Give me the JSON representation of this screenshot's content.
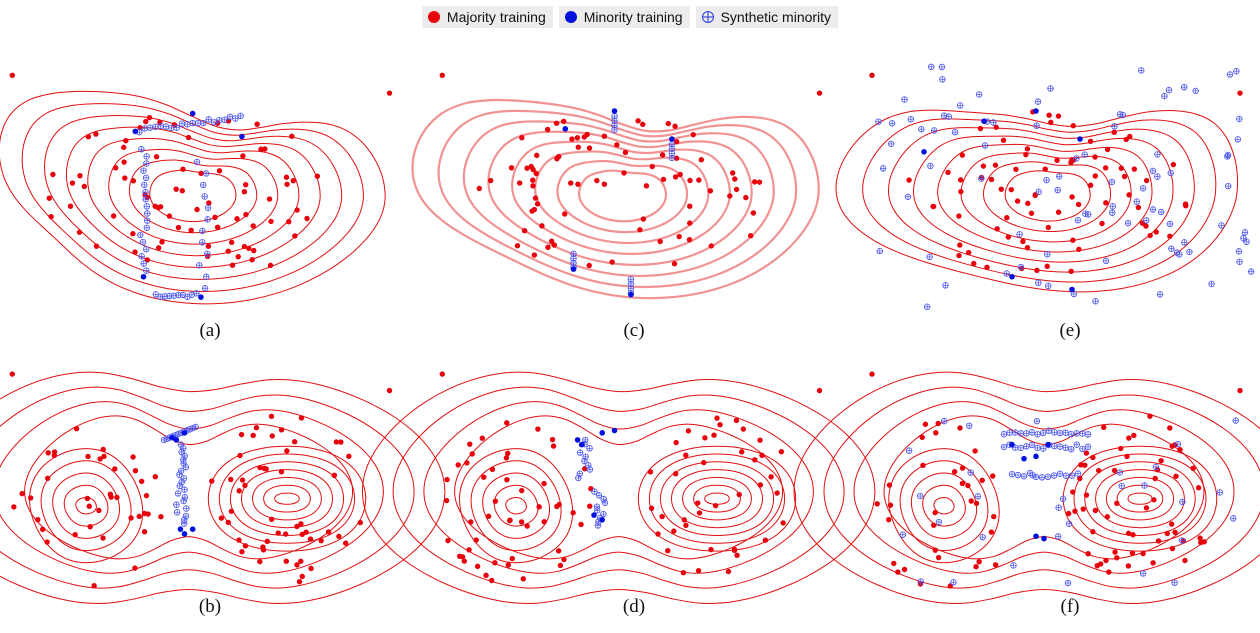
{
  "legend": {
    "majority": "Majority training",
    "minority": "Minority training",
    "synthetic": "Synthetic minority"
  },
  "colors": {
    "majority": "#e8000b",
    "minority": "#0011dd",
    "synthetic": "#4a55ee",
    "contour": "#e01010"
  },
  "chart_data": [
    {
      "label": "(a)",
      "type": "scatter",
      "distribution": "single-mode",
      "smoothed_contours": false,
      "minority_layout": "corners",
      "majority_points": 80,
      "minority_points": 5,
      "synthetic_points": 60
    },
    {
      "label": "(b)",
      "type": "scatter",
      "distribution": "two-mode",
      "smoothed_contours": false,
      "minority_layout": "gap",
      "majority_points": 90,
      "minority_points": 6,
      "synthetic_points": 34
    },
    {
      "label": "(c)",
      "type": "scatter",
      "distribution": "single-mode",
      "smoothed_contours": true,
      "minority_layout": "clusters",
      "majority_points": 80,
      "minority_points": 5,
      "synthetic_points": 16
    },
    {
      "label": "(d)",
      "type": "scatter",
      "distribution": "two-mode",
      "smoothed_contours": false,
      "minority_layout": "columns",
      "majority_points": 90,
      "minority_points": 6,
      "synthetic_points": 20
    },
    {
      "label": "(e)",
      "type": "scatter",
      "distribution": "single-mode",
      "smoothed_contours": false,
      "minority_layout": "scattered",
      "majority_points": 80,
      "minority_points": 6,
      "synthetic_points": 90
    },
    {
      "label": "(f)",
      "type": "scatter",
      "distribution": "two-mode",
      "smoothed_contours": false,
      "minority_layout": "bands",
      "majority_points": 90,
      "minority_points": 6,
      "synthetic_points": 75
    }
  ]
}
